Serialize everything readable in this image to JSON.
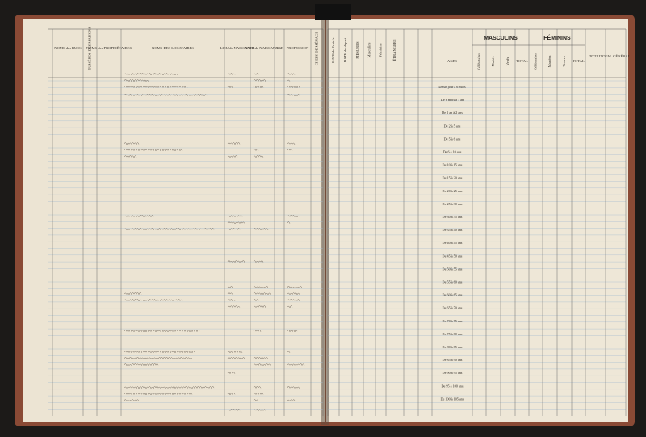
{
  "left_page": {
    "headers": [
      "NOMS des RUES",
      "NUMÉROS DES MAISONS",
      "NOMS des PROPRIÉTAIRES",
      "NOMS DES LOCATAIRES",
      "LIEU de NAISSANCE",
      "DATE de NAISSANCE",
      "AGE",
      "PROFESSION",
      "CHEFS DE MÉNAGE"
    ]
  },
  "right_page": {
    "headers": [
      "DATE de l'entrée",
      "DATE du départ",
      "MESURES",
      "Masculins",
      "Féminins",
      "ÉTRANGERS"
    ],
    "groups": [
      "MASCULINS",
      "FÉMININS"
    ],
    "sub_headers": [
      "Célibataires",
      "Mariés",
      "Veufs",
      "TOTAL",
      "Célibataires",
      "Mariées",
      "Veuves",
      "TOTAL"
    ],
    "ages_header": "AGES",
    "total": "TOTAL",
    "total_general": "TOTAL GÉNÉRAL",
    "ages": [
      "De un jour à 6 mois",
      "De 6 mois à 1 an",
      "De 1 an à 2 ans",
      "De 2 à 5 ans",
      "De 5 à 6 ans",
      "De 6 à 10 ans",
      "De 10 à 15 ans",
      "De 15 à 20 ans",
      "De 20 à 25 ans",
      "De 25 à 30 ans",
      "De 30 à 35 ans",
      "De 35 à 40 ans",
      "De 40 à 45 ans",
      "De 45 à 50 ans",
      "De 50 à 55 ans",
      "De 55 à 60 ans",
      "De 60 à 65 ans",
      "De 65 à 70 ans",
      "De 70 à 75 ans",
      "De 75 à 80 ans",
      "De 80 à 85 ans",
      "De 85 à 90 ans",
      "De 90 à 95 ans",
      "De 95 à 100 ans",
      "De 100 à 105 ans"
    ]
  }
}
